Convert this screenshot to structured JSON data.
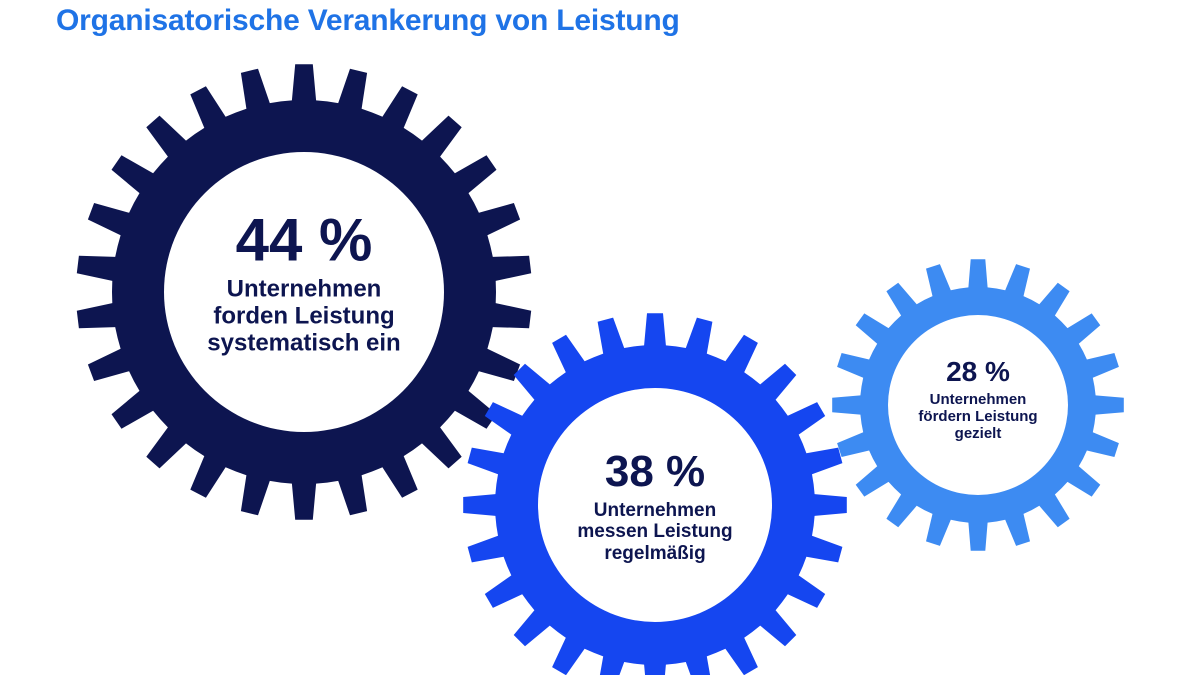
{
  "title": "Organisatorische Verankerung von Leistung",
  "colors": {
    "title": "#1f73e6",
    "text": "#0d1550",
    "center": "#ffffff"
  },
  "gears": [
    {
      "id": "gear-large",
      "color": "#0d1550",
      "percent": "44 %",
      "value": 44,
      "lines": [
        "Unternehmen",
        "forden Leistung",
        "systematisch ein"
      ]
    },
    {
      "id": "gear-medium",
      "color": "#1546f0",
      "percent": "38 %",
      "value": 38,
      "lines": [
        "Unternehmen",
        "messen Leistung",
        "regelmäßig"
      ]
    },
    {
      "id": "gear-small",
      "color": "#3d8bf2",
      "percent": "28 %",
      "value": 28,
      "lines": [
        "Unternehmen",
        "fördern Leistung",
        "gezielt"
      ]
    }
  ]
}
